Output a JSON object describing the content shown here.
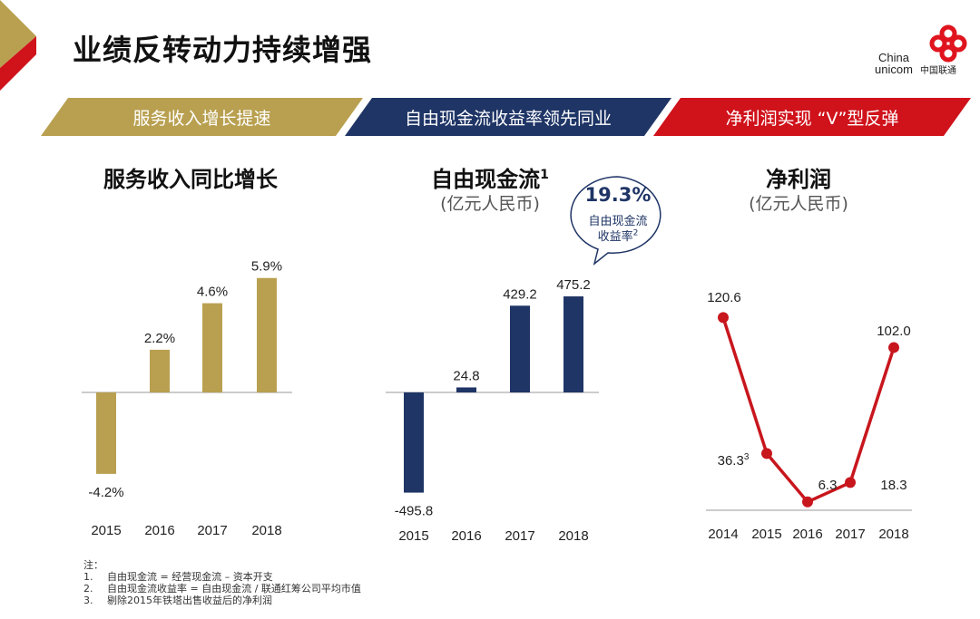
{
  "title": "业绩反转动力持续增强",
  "logo": {
    "text_en": "China unicom",
    "text_cn": "中国联通"
  },
  "banners": [
    {
      "label": "服务收入增长提速",
      "color": "#b9a050"
    },
    {
      "label": "自由现金流收益率领先同业",
      "color": "#1f3566"
    },
    {
      "label": "净利润实现 “V”型反弹",
      "color": "#d0121b"
    }
  ],
  "bubble": {
    "value": "19.3%",
    "label1": "自由现金流",
    "label2": "收益率",
    "sup": "2"
  },
  "chart_data": [
    {
      "type": "bar",
      "title": "服务收入同比增长",
      "categories": [
        "2015",
        "2016",
        "2017",
        "2018"
      ],
      "values": [
        -4.2,
        2.2,
        4.6,
        5.9
      ],
      "labels": [
        "-4.2%",
        "2.2%",
        "4.6%",
        "5.9%"
      ],
      "color": "#b9a050"
    },
    {
      "type": "bar",
      "title": "自由现金流",
      "title_sup": "1",
      "subtitle": "(亿元人民币)",
      "categories": [
        "2015",
        "2016",
        "2017",
        "2018"
      ],
      "values": [
        -495.8,
        24.8,
        429.2,
        475.2
      ],
      "labels": [
        "-495.8",
        "24.8",
        "429.2",
        "475.2"
      ],
      "color": "#1f3566"
    },
    {
      "type": "line",
      "title": "净利润",
      "subtitle": "(亿元人民币)",
      "categories": [
        "2014",
        "2015",
        "2016",
        "2017",
        "2018"
      ],
      "values": [
        120.6,
        36.3,
        6.3,
        18.3,
        102.0
      ],
      "labels": [
        "120.6",
        "36.3",
        "6.3",
        "18.3",
        "102.0"
      ],
      "label_sups": [
        "",
        "3",
        "",
        "",
        ""
      ],
      "color": "#c8161d"
    }
  ],
  "notes": {
    "heading": "注：",
    "items": [
      {
        "num": "1.",
        "text": "自由现金流 = 经营现金流 – 资本开支"
      },
      {
        "num": "2.",
        "text": "自由现金流收益率 = 自由现金流 / 联通红筹公司平均市值"
      },
      {
        "num": "3.",
        "text": "剔除2015年铁塔出售收益后的净利润"
      }
    ]
  }
}
